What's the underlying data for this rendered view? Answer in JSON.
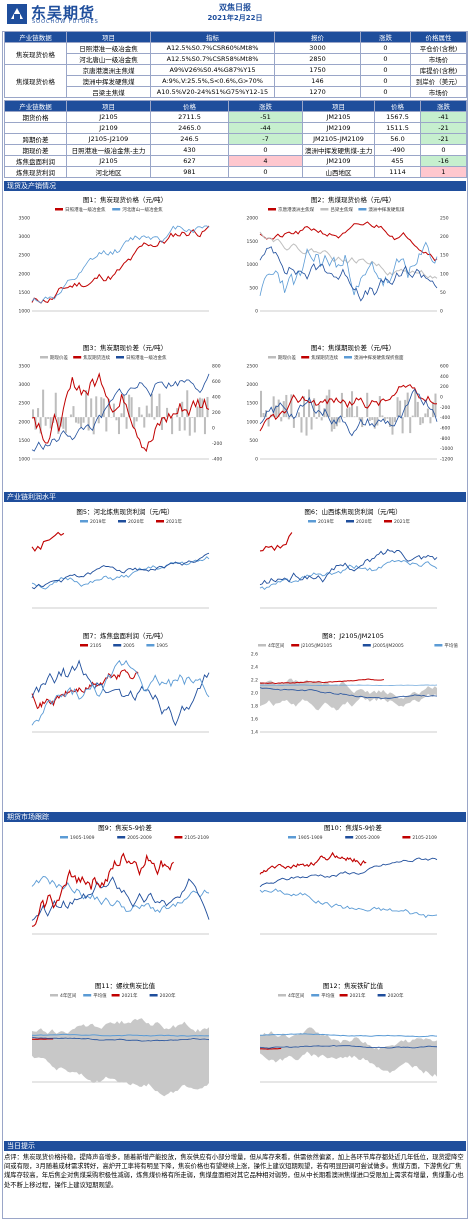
{
  "header": {
    "logo_cn": "东吴期货",
    "logo_en": "SOOCHOW FUTURES",
    "title": "双焦日报",
    "date": "2021年2月22日"
  },
  "spot_table": {
    "headers": [
      "产业链数据",
      "项目",
      "指标",
      "报价",
      "涨跌",
      "价格属性"
    ],
    "groups": [
      {
        "name": "焦炭现货价格",
        "rows": [
          [
            "日照港准一级冶金焦",
            "A12.5%S0.7%CSR60%Mt8%",
            "3000",
            "0",
            "平仓价(含税)"
          ],
          [
            "河北唐山一级冶金焦",
            "A12.5%S0.7%CSR58%Mt8%",
            "2850",
            "0",
            "市场价"
          ]
        ]
      },
      {
        "name": "焦煤现货价格",
        "rows": [
          [
            "京唐港澳洲主焦煤",
            "A9%V26%S0.4%G87%Y15",
            "1750",
            "0",
            "库提价(含税)"
          ],
          [
            "澳洲中挥发硬焦煤",
            "A:9%,V:25.5%,S<0.6%,G>70%",
            "146",
            "0",
            "到岸价（美元）"
          ],
          [
            "吕梁主焦煤",
            "A10.5%V20-24%S1%G75%Y12-15",
            "1270",
            "0",
            "市场价"
          ]
        ]
      }
    ]
  },
  "futures_table": {
    "headers": [
      "产业链数据",
      "项目",
      "价格",
      "涨跌",
      "项目",
      "价格",
      "涨跌"
    ],
    "rows": [
      {
        "name": "期货价格",
        "cells": [
          "J2105",
          "2711.5",
          "-51",
          "JM2105",
          "1567.5",
          "-41"
        ],
        "c1": "neg",
        "c2": "neg"
      },
      {
        "name": "",
        "cells": [
          "J2109",
          "2465.0",
          "-44",
          "JM2109",
          "1511.5",
          "-21"
        ],
        "c1": "neg",
        "c2": "neg"
      },
      {
        "name": "跨期价差",
        "cells": [
          "J2105-J2109",
          "246.5",
          "-7",
          "JM2105-JM2109",
          "56.0",
          "-21"
        ],
        "c1": "neg",
        "c2": "neg"
      },
      {
        "name": "期现价差",
        "cells": [
          "日照港准一级冶金焦-主力",
          "430",
          "0",
          "澳洲中挥发硬焦煤-主力",
          "-490",
          "0"
        ],
        "c1": "",
        "c2": ""
      },
      {
        "name": "炼焦盘面利润",
        "cells": [
          "J2105",
          "627",
          "4",
          "JM2109",
          "455",
          "-16"
        ],
        "c1": "pos",
        "c2": "neg"
      },
      {
        "name": "炼焦现货利润",
        "cells": [
          "河北地区",
          "981",
          "0",
          "山西地区",
          "1114",
          "1"
        ],
        "c1": "",
        "c2": "pos"
      }
    ]
  },
  "sections": {
    "s1": "现货及产销情况",
    "s2": "产业链利润水平",
    "s3": "期货市场跟踪",
    "s4": "当日提示"
  },
  "charts": {
    "c1": {
      "title": "图1：焦炭现货价格（元/吨）",
      "legend": [
        "日照港准一级冶金焦",
        "河北唐山一级冶金焦"
      ],
      "yticks": [
        "1000",
        "1500",
        "2000",
        "2500",
        "3000",
        "3500"
      ]
    },
    "c2": {
      "title": "图2：焦煤现货价格（元/吨）",
      "legend": [
        "京唐港澳洲主焦煤",
        "吕梁主焦煤",
        "澳洲中挥发硬焦煤"
      ],
      "yticks": [
        "0",
        "500",
        "1000",
        "1500",
        "2000"
      ],
      "y2ticks": [
        "0",
        "50",
        "100",
        "150",
        "200",
        "250"
      ]
    },
    "c3": {
      "title": "图3：焦炭期现价差（元/吨）",
      "legend": [
        "期现价差",
        "焦炭期货连续",
        "日照港准一级冶金焦"
      ],
      "yticks": [
        "1000",
        "1500",
        "2000",
        "2500",
        "3000",
        "3500"
      ],
      "y2ticks": [
        "-400",
        "-200",
        "0",
        "200",
        "400",
        "600",
        "800"
      ]
    },
    "c4": {
      "title": "图4：焦煤期现价差（元/吨）",
      "legend": [
        "期现价差",
        "焦煤期货连续",
        "澳洲中挥发硬焦煤折盘面"
      ],
      "yticks": [
        "0",
        "500",
        "1000",
        "1500",
        "2000",
        "2500"
      ],
      "y2ticks": [
        "-1200",
        "-1000",
        "-800",
        "-600",
        "-400",
        "-200",
        "0",
        "200",
        "400",
        "600"
      ]
    },
    "c5": {
      "title": "图5：河北炼焦现货利润（元/吨）",
      "legend": [
        "2019年",
        "2020年",
        "2021年"
      ]
    },
    "c6": {
      "title": "图6：山西炼焦现货利润（元/吨）",
      "legend": [
        "2019年",
        "2020年",
        "2021年"
      ]
    },
    "c7": {
      "title": "图7：炼焦盘面利润（元/吨）",
      "legend": [
        "2105",
        "2005",
        "1905"
      ]
    },
    "c8": {
      "title": "图8：J2105/JM2105",
      "legend": [
        "4年区间",
        "J2105/JM2105",
        "J2005/JM2005",
        "平均值"
      ],
      "yticks": [
        "1.4",
        "1.6",
        "1.8",
        "2.0",
        "2.2",
        "2.4",
        "2.6"
      ]
    },
    "c9": {
      "title": "图9：焦炭5-9价差",
      "legend": [
        "1905-1909",
        "2005-2009",
        "2105-2109"
      ]
    },
    "c10": {
      "title": "图10：焦煤5-9价差",
      "legend": [
        "1905-1909",
        "2005-2009",
        "2105-2109"
      ]
    },
    "c11": {
      "title": "图11：螺纹焦炭比值",
      "legend": [
        "4年区间",
        "平均值",
        "2021年",
        "2020年"
      ]
    },
    "c12": {
      "title": "图12：焦炭铁矿比值",
      "legend": [
        "4年区间",
        "平均值",
        "2021年",
        "2020年"
      ]
    }
  },
  "notes": "点评：焦炭现货价格持稳，提降声音增多，随着新增产能投放，焦炭供应有小部分增量，但从库存来看，供需依然偏紧，加上各环节库存都处近几年低位，现货提降空间或有限，3月随着成材需求转好，高炉开工率将有明显下降，焦炭价格也有望继续上涨，操作上建议短期观望，若有明显回调可尝试做多。焦煤方面，下游焦化厂焦煤库存较高，年后焦企对焦煤采购积极性减弱，炼焦煤价格有所走弱，焦煤盘面相对其它品种相对弱势，但从中长期看澳洲焦煤进口受限加上需求有增量，焦煤重心也处不断上移过程，操作上建议短期观望。"
}
